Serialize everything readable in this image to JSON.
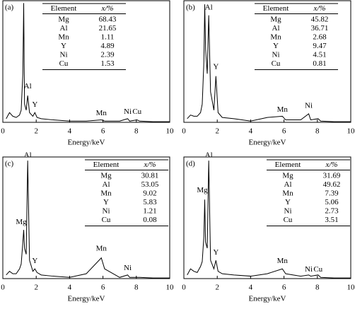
{
  "chart_data": [
    {
      "type": "line",
      "label": "(a)",
      "xlabel": "Energy/keV",
      "xlim": [
        0,
        10
      ],
      "xticks": [
        0,
        2,
        4,
        6,
        8,
        10
      ],
      "ylim": [
        0,
        100
      ],
      "color": "#000000",
      "x": [
        0.2,
        0.4,
        0.6,
        0.8,
        1.0,
        1.1,
        1.2,
        1.25,
        1.3,
        1.4,
        1.49,
        1.6,
        1.8,
        1.92,
        2.05,
        2.3,
        3,
        4,
        5,
        5.9,
        6.1,
        7,
        7.48,
        7.6,
        8.04,
        8.2,
        9,
        10
      ],
      "values": [
        3,
        8,
        5,
        4,
        6,
        10,
        40,
        98,
        15,
        10,
        22,
        8,
        5,
        8,
        4,
        3,
        2,
        1,
        1,
        2,
        1,
        1,
        3,
        1,
        2,
        1,
        0.5,
        0.5
      ],
      "annotations": [
        {
          "text": "Al",
          "x": 1.49,
          "y": 27
        },
        {
          "text": "Y",
          "x": 1.92,
          "y": 12
        },
        {
          "text": "Mn",
          "x": 5.9,
          "y": 5
        },
        {
          "text": "Ni",
          "x": 7.48,
          "y": 6
        },
        {
          "text": "Cu",
          "x": 8.04,
          "y": 6
        }
      ],
      "table": {
        "columns": [
          "Element",
          "x/%"
        ],
        "rows": [
          [
            "Mg",
            68.43
          ],
          [
            "Al",
            21.65
          ],
          [
            "Mn",
            1.11
          ],
          [
            "Y",
            4.89
          ],
          [
            "Ni",
            2.39
          ],
          [
            "Cu",
            1.53
          ]
        ]
      }
    },
    {
      "type": "line",
      "label": "(b)",
      "xlabel": "Energy/keV",
      "xlim": [
        0,
        10
      ],
      "xticks": [
        0,
        2,
        4,
        6,
        8,
        10
      ],
      "ylim": [
        0,
        100
      ],
      "color": "#000000",
      "x": [
        0.2,
        0.4,
        0.6,
        0.8,
        1.0,
        1.1,
        1.2,
        1.25,
        1.3,
        1.4,
        1.49,
        1.6,
        1.8,
        1.92,
        2.05,
        2.3,
        3,
        4,
        5,
        5.9,
        6.1,
        7,
        7.48,
        7.6,
        8.04,
        8.2,
        9,
        10
      ],
      "values": [
        3,
        6,
        5,
        5,
        8,
        15,
        50,
        97,
        60,
        40,
        88,
        25,
        10,
        38,
        8,
        4,
        3,
        1,
        4,
        5,
        2,
        2,
        7,
        2,
        3,
        1,
        0.5,
        0.5
      ],
      "annotations": [
        {
          "text": "Al",
          "x": 1.49,
          "y": 92
        },
        {
          "text": "Y",
          "x": 1.92,
          "y": 43
        },
        {
          "text": "Mn",
          "x": 5.9,
          "y": 8
        },
        {
          "text": "Ni",
          "x": 7.48,
          "y": 11
        }
      ],
      "table": {
        "columns": [
          "Element",
          "x/%"
        ],
        "rows": [
          [
            "Mg",
            45.82
          ],
          [
            "Al",
            36.71
          ],
          [
            "Mn",
            2.68
          ],
          [
            "Y",
            9.47
          ],
          [
            "Ni",
            4.51
          ],
          [
            "Cu",
            0.81
          ]
        ]
      }
    },
    {
      "type": "line",
      "label": "(c)",
      "xlabel": "Energy/keV",
      "xlim": [
        0,
        10
      ],
      "xticks": [
        0,
        2,
        4,
        6,
        8,
        10
      ],
      "ylim": [
        0,
        100
      ],
      "color": "#000000",
      "x": [
        0.2,
        0.4,
        0.6,
        0.8,
        1.0,
        1.1,
        1.2,
        1.25,
        1.3,
        1.4,
        1.49,
        1.6,
        1.8,
        1.92,
        2.05,
        2.3,
        3,
        4,
        5,
        5.9,
        6.1,
        7,
        7.48,
        7.6,
        8.04,
        8.2,
        9,
        10
      ],
      "values": [
        3,
        6,
        4,
        4,
        8,
        12,
        30,
        40,
        25,
        20,
        97,
        15,
        6,
        8,
        5,
        3,
        2,
        1,
        4,
        17,
        8,
        1,
        3,
        1,
        1,
        1,
        0.5,
        0.5
      ],
      "annotations": [
        {
          "text": "Al",
          "x": 1.49,
          "y": 99
        },
        {
          "text": "Mg",
          "x": 1.1,
          "y": 44
        },
        {
          "text": "Y",
          "x": 1.92,
          "y": 12
        },
        {
          "text": "Mn",
          "x": 5.9,
          "y": 22
        },
        {
          "text": "Ni",
          "x": 7.48,
          "y": 6
        }
      ],
      "table": {
        "columns": [
          "Element",
          "x/%"
        ],
        "rows": [
          [
            "Mg",
            30.81
          ],
          [
            "Al",
            53.05
          ],
          [
            "Mn",
            9.02
          ],
          [
            "Y",
            5.83
          ],
          [
            "Ni",
            1.21
          ],
          [
            "Cu",
            0.08
          ]
        ]
      }
    },
    {
      "type": "line",
      "label": "(d)",
      "xlabel": "Energy/keV",
      "xlim": [
        0,
        10
      ],
      "xticks": [
        0,
        2,
        4,
        6,
        8,
        10
      ],
      "ylim": [
        0,
        100
      ],
      "color": "#000000",
      "x": [
        0.2,
        0.4,
        0.6,
        0.8,
        1.0,
        1.1,
        1.2,
        1.25,
        1.3,
        1.4,
        1.49,
        1.6,
        1.8,
        1.92,
        2.05,
        2.3,
        3,
        4,
        5,
        5.9,
        6.1,
        7,
        7.48,
        7.6,
        8.04,
        8.2,
        9,
        10
      ],
      "values": [
        3,
        8,
        6,
        5,
        10,
        14,
        35,
        65,
        30,
        25,
        97,
        15,
        8,
        15,
        6,
        4,
        3,
        2,
        4,
        8,
        4,
        2,
        3,
        2,
        3,
        1,
        0.5,
        0.5
      ],
      "annotations": [
        {
          "text": "Al",
          "x": 1.49,
          "y": 99
        },
        {
          "text": "Mg",
          "x": 1.1,
          "y": 70
        },
        {
          "text": "Y",
          "x": 1.92,
          "y": 19
        },
        {
          "text": "Mn",
          "x": 5.9,
          "y": 12
        },
        {
          "text": "Ni",
          "x": 7.48,
          "y": 5
        },
        {
          "text": "Cu",
          "x": 8.04,
          "y": 5
        }
      ],
      "table": {
        "columns": [
          "Element",
          "x/%"
        ],
        "rows": [
          [
            "Mg",
            31.69
          ],
          [
            "Al",
            49.62
          ],
          [
            "Mn",
            7.39
          ],
          [
            "Y",
            5.06
          ],
          [
            "Ni",
            2.73
          ],
          [
            "Cu",
            3.51
          ]
        ]
      }
    }
  ]
}
